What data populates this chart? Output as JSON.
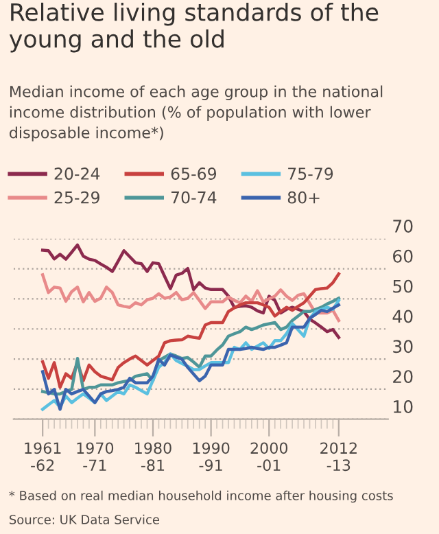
{
  "chart_data": {
    "type": "line",
    "title": "Relative living standards of the young and the old",
    "subtitle": "Median income of each age group in the national income distribution (% of population with lower disposable income*)",
    "legend": "top left",
    "grid": "y",
    "marker": "none",
    "line_style": "solid",
    "ylim": [
      10,
      70
    ],
    "yticks": [
      10,
      20,
      30,
      40,
      50,
      60,
      70
    ],
    "categories": [
      "1961\n-62",
      null,
      null,
      null,
      null,
      null,
      null,
      null,
      null,
      "1970\n-71",
      null,
      null,
      null,
      null,
      null,
      null,
      null,
      null,
      null,
      "1980\n-81",
      null,
      null,
      null,
      null,
      null,
      null,
      null,
      null,
      null,
      "1990\n-91",
      null,
      null,
      null,
      null,
      null,
      null,
      null,
      null,
      null,
      "2000\n-01",
      null,
      null,
      null,
      null,
      null,
      null,
      null,
      null,
      null,
      null,
      null,
      "2012\n-13"
    ],
    "annotations": [
      "* Based on real median household income after housing costs",
      "Source: UK Data Service"
    ],
    "series": [
      {
        "name": "20-24",
        "color": "#8c2a4e",
        "values": [
          66.2,
          66.0,
          63.3,
          64.8,
          63.2,
          65.5,
          67.9,
          64.2,
          63.2,
          62.8,
          61.6,
          60.5,
          59.1,
          62.5,
          66.0,
          64.0,
          62.0,
          61.7,
          59.1,
          62.0,
          61.7,
          57.5,
          53.4,
          57.9,
          58.5,
          60.1,
          53.1,
          55.4,
          53.6,
          53.1,
          53.1,
          53.1,
          50.9,
          47.2,
          47.5,
          47.7,
          47.2,
          46.0,
          45.3,
          50.9,
          49.5,
          45.3,
          46.5,
          47.2,
          46.5,
          45.8,
          43.2,
          42.0,
          40.6,
          39.1,
          39.8,
          37.2
        ]
      },
      {
        "name": "25-29",
        "color": "#e88a8a",
        "values": [
          58.0,
          52.1,
          53.9,
          53.6,
          49.2,
          52.4,
          53.9,
          49.0,
          52.1,
          49.2,
          50.2,
          53.9,
          52.1,
          48.0,
          47.5,
          47.2,
          48.7,
          48.0,
          49.7,
          50.2,
          51.7,
          50.2,
          50.6,
          52.1,
          49.7,
          50.2,
          52.1,
          49.5,
          46.8,
          49.0,
          49.0,
          49.0,
          50.6,
          49.5,
          48.7,
          50.9,
          49.2,
          52.7,
          49.0,
          50.0,
          50.9,
          53.0,
          50.9,
          49.5,
          51.2,
          51.7,
          48.5,
          45.3,
          45.3,
          45.3,
          46.2,
          42.8
        ]
      },
      {
        "name": "65-69",
        "color": "#c8413f",
        "values": [
          29.1,
          23.6,
          28.8,
          20.6,
          25.1,
          23.6,
          28.8,
          22.8,
          28.0,
          25.8,
          24.3,
          23.7,
          23.1,
          27.2,
          28.8,
          30.0,
          31.0,
          29.5,
          28.0,
          29.5,
          31.0,
          35.4,
          36.1,
          36.3,
          36.4,
          37.6,
          37.2,
          36.9,
          41.3,
          42.1,
          42.1,
          42.1,
          45.8,
          47.0,
          48.0,
          48.7,
          48.7,
          48.7,
          48.0,
          47.2,
          44.3,
          45.8,
          47.2,
          46.2,
          47.5,
          48.7,
          50.9,
          53.1,
          53.4,
          53.6,
          55.4,
          58.3
        ]
      },
      {
        "name": "70-74",
        "color": "#4e9698",
        "values": [
          19.2,
          18.8,
          18.4,
          18.4,
          19.2,
          19.9,
          30.2,
          19.9,
          20.6,
          20.6,
          21.4,
          21.4,
          21.4,
          22.1,
          22.5,
          22.9,
          24.3,
          24.7,
          25.1,
          22.8,
          29.5,
          30.6,
          31.7,
          31.0,
          30.2,
          30.5,
          29.0,
          27.3,
          31.0,
          31.0,
          33.0,
          34.7,
          37.6,
          38.4,
          39.1,
          40.6,
          39.8,
          40.5,
          41.3,
          41.7,
          42.1,
          39.8,
          40.6,
          42.8,
          44.3,
          45.8,
          45.8,
          46.5,
          47.2,
          48.3,
          49.2,
          50.2
        ]
      },
      {
        "name": "75-79",
        "color": "#5bc0e0",
        "values": [
          13.3,
          14.8,
          16.2,
          14.0,
          17.7,
          15.5,
          17.0,
          18.4,
          17.0,
          15.5,
          18.4,
          16.2,
          17.7,
          19.2,
          18.4,
          21.4,
          20.6,
          19.5,
          18.4,
          22.9,
          27.3,
          28.8,
          31.7,
          29.5,
          28.5,
          27.6,
          26.5,
          26.5,
          27.7,
          28.8,
          28.8,
          28.8,
          28.8,
          33.9,
          33.2,
          35.4,
          33.2,
          34.3,
          35.4,
          33.5,
          36.1,
          36.1,
          38.4,
          41.8,
          39.7,
          37.6,
          43.5,
          45.8,
          46.5,
          47.2,
          46.5,
          49.5
        ]
      },
      {
        "name": "80+",
        "color": "#3b64ae",
        "values": [
          25.8,
          18.4,
          19.9,
          13.3,
          19.9,
          18.4,
          19.2,
          19.9,
          17.7,
          15.5,
          18.4,
          19.2,
          19.5,
          19.9,
          20.6,
          23.6,
          22.1,
          22.1,
          22.1,
          24.3,
          29.9,
          28.0,
          31.4,
          30.6,
          29.9,
          27.2,
          25.0,
          22.8,
          24.3,
          28.0,
          28.0,
          28.0,
          33.2,
          33.2,
          33.2,
          33.5,
          33.9,
          33.5,
          33.2,
          33.9,
          33.9,
          34.6,
          35.4,
          40.6,
          40.6,
          40.6,
          43.5,
          44.8,
          46.2,
          45.8,
          46.9,
          48.0
        ]
      }
    ]
  }
}
